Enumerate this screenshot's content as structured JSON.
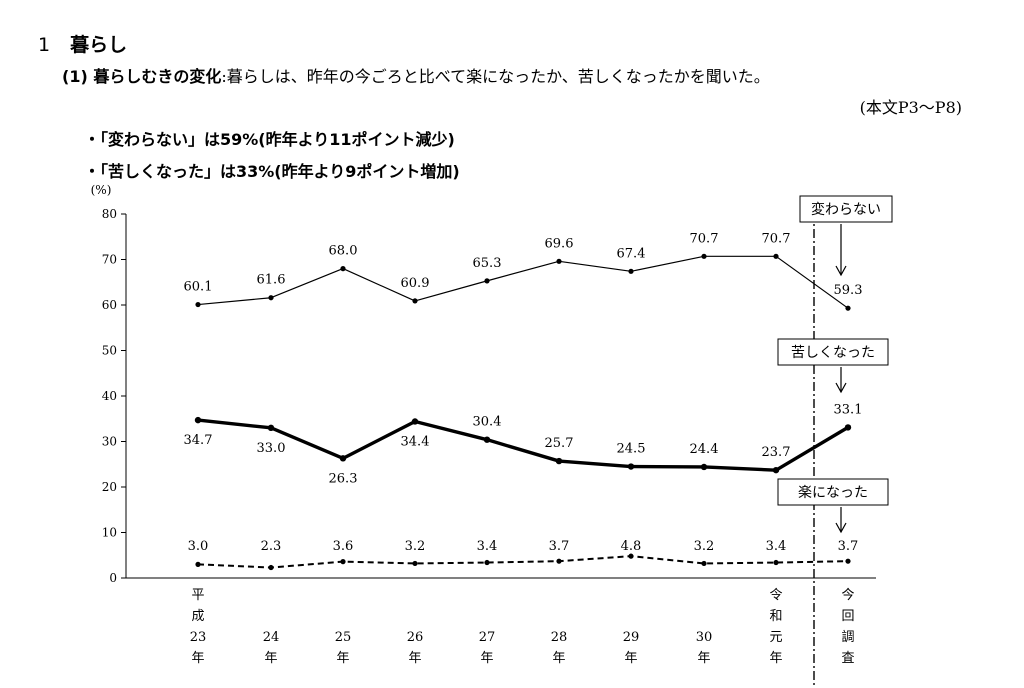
{
  "section": {
    "number": "1",
    "title": "暮らし"
  },
  "subsection": {
    "heading": "(1) 暮らしむきの変化",
    "description": ":暮らしは、昨年の今ごろと比べて楽になったか、苦しくなったかを聞いた。"
  },
  "reference": "(本文P3〜P8)",
  "bullets": [
    "・「変わらない」は59%(昨年より11ポイント減少)",
    "・「苦しくなった」は33%(昨年より9ポイント増加)"
  ],
  "chart_data": {
    "type": "line",
    "ylabel": "(%)",
    "ylim": [
      0,
      80
    ],
    "yticks": [
      0,
      10,
      20,
      30,
      40,
      50,
      60,
      70,
      80
    ],
    "categories": [
      [
        "平",
        "成",
        "23",
        "年"
      ],
      [
        "24",
        "年"
      ],
      [
        "25",
        "年"
      ],
      [
        "26",
        "年"
      ],
      [
        "27",
        "年"
      ],
      [
        "28",
        "年"
      ],
      [
        "29",
        "年"
      ],
      [
        "30",
        "年"
      ],
      [
        "令",
        "和",
        "元",
        "年"
      ],
      [
        "今",
        "回",
        "調",
        "査"
      ]
    ],
    "series": [
      {
        "name": "変わらない",
        "style": "thin-solid",
        "values": [
          60.1,
          61.6,
          68.0,
          60.9,
          65.3,
          69.6,
          67.4,
          70.7,
          70.7,
          59.3
        ],
        "labels": [
          "60.1",
          "61.6",
          "68.0",
          "60.9",
          "65.3",
          "69.6",
          "67.4",
          "70.7",
          "70.7",
          "59.3"
        ],
        "label_pos": [
          "above",
          "above",
          "above",
          "above",
          "above",
          "above",
          "above",
          "above",
          "above",
          "above"
        ]
      },
      {
        "name": "苦しくなった",
        "style": "thick-solid",
        "values": [
          34.7,
          33.0,
          26.3,
          34.4,
          30.4,
          25.7,
          24.5,
          24.4,
          23.7,
          33.1
        ],
        "labels": [
          "34.7",
          "33.0",
          "26.3",
          "34.4",
          "30.4",
          "25.7",
          "24.5",
          "24.4",
          "23.7",
          "33.1"
        ],
        "label_pos": [
          "below",
          "below",
          "below",
          "below",
          "above",
          "above",
          "above",
          "above",
          "above",
          "above"
        ]
      },
      {
        "name": "楽になった",
        "style": "dashed",
        "values": [
          3.0,
          2.3,
          3.6,
          3.2,
          3.4,
          3.7,
          4.8,
          3.2,
          3.4,
          3.7
        ],
        "labels": [
          "3.0",
          "2.3",
          "3.6",
          "3.2",
          "3.4",
          "3.7",
          "4.8",
          "3.2",
          "3.4",
          "3.7"
        ],
        "label_pos": [
          "above",
          "above",
          "above",
          "above",
          "above",
          "above",
          "above",
          "above",
          "above",
          "above"
        ]
      }
    ],
    "legend_callouts": [
      "変わらない",
      "苦しくなった",
      "楽になった"
    ],
    "colors": {
      "line": "#000000",
      "background": "#ffffff"
    }
  }
}
